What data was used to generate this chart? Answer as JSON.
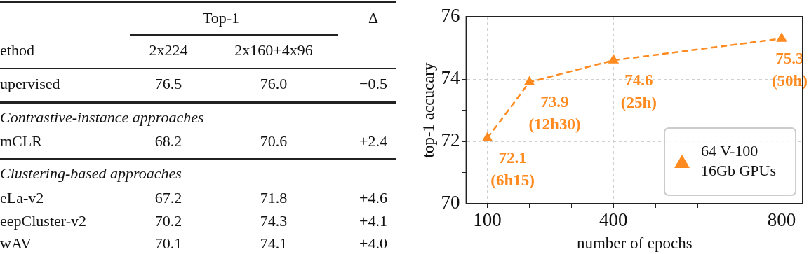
{
  "chart_data": [
    {
      "type": "other",
      "y_categories": [
        null,
        "ethod",
        "upervised",
        "Contrastive-instance approaches",
        "mCLR",
        "Clustering-based approaches",
        "eLa-v2",
        "eepCluster-v2",
        "wAV"
      ],
      "cell_labels": [
        [
          "Top-1",
          null,
          "Δ"
        ],
        [
          "2x224",
          "2x160+4x96",
          null
        ],
        [
          "76.5",
          "76.0",
          "−0.5"
        ],
        null,
        [
          "68.2",
          "70.6",
          "+2.4"
        ],
        null,
        [
          "67.2",
          "71.8",
          "+4.6"
        ],
        [
          "70.2",
          "74.3",
          "+4.1"
        ],
        [
          "70.1",
          "74.1",
          "+4.0"
        ]
      ]
    },
    {
      "type": "line",
      "xlabel": "number of epochs",
      "ylabel": "top-1 accucary",
      "x": [
        100,
        200,
        400,
        800
      ],
      "series": [
        {
          "name": "64 V-100 16Gb GPUs",
          "color": "#ff8a1f",
          "values": [
            72.1,
            73.9,
            74.6,
            75.3
          ],
          "value_labels": [
            "72.1 (6h15)",
            "73.9 (12h30)",
            "74.6 (25h)",
            "75.3 (50h)"
          ]
        }
      ],
      "xlim": [
        50,
        850
      ],
      "xticks": [
        100,
        {
          "value": 200,
          "label": null
        },
        {
          "value": 300,
          "label": null
        },
        400,
        {
          "value": 500,
          "label": null
        },
        {
          "value": 600,
          "label": null
        },
        {
          "value": 700,
          "label": null
        },
        800
      ],
      "ylim": [
        70,
        76
      ],
      "yticks": [
        70,
        {
          "value": 71,
          "label": null
        },
        72,
        {
          "value": 73,
          "label": null
        },
        74,
        {
          "value": 75,
          "label": null
        },
        76
      ],
      "grid": true,
      "legend": "bottom right",
      "marker": "triangle",
      "line_style": "dashed"
    }
  ]
}
